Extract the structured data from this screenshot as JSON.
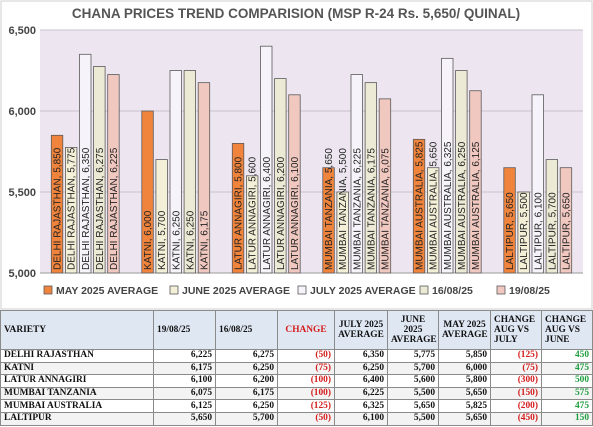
{
  "chart_data": {
    "type": "bar",
    "title": "CHANA PRICES TREND COMPARISION (MSP R-24 Rs. 5,650/ QUINAL)",
    "ylim": [
      5000,
      6500
    ],
    "yticks": [
      "5,000",
      "5,500",
      "6,000",
      "6,500"
    ],
    "ytick_values": [
      5000,
      5500,
      6000,
      6500
    ],
    "grid": true,
    "legend_position": "bottom",
    "categories": [
      "DELHI RAJASTHAN",
      "KATNI",
      "LATUR ANNAGIRI",
      "MUMBAI TANZANIA",
      "MUMBAI AUSTRALIA",
      "LALTIPUR"
    ],
    "series": [
      {
        "name": "MAY 2025 AVERAGE",
        "color": "#f0843c",
        "values": [
          5850,
          6000,
          5800,
          5650,
          5825,
          5650
        ],
        "labels": [
          "DELHI RAJASTHAN, 5,850",
          "KATNI, 6,000",
          "LATUR ANNAGIRI, 5,800",
          "MUMBAI TANZANIA, 5,650",
          "MUMBAI AUSTRALIA, 5,825",
          "LALTIPUR, 5,650"
        ]
      },
      {
        "name": "JUNE 2025 AVERAGE",
        "color": "#f4f0d8",
        "values": [
          5775,
          5700,
          5600,
          5500,
          5650,
          5500
        ],
        "labels": [
          "DELHI RAJASTHAN, 5,775",
          "KATNI, 5,700",
          "LATUR ANNAGIRI, 5,600",
          "MUMBAI TANZANIA, 5,500",
          "MUMBAI AUSTRALIA, 5,650",
          "LALTIPUR, 5,500"
        ]
      },
      {
        "name": "JULY 2025 AVERAGE",
        "color": "#f6f4fa",
        "values": [
          6350,
          6250,
          6400,
          6225,
          6325,
          6100
        ],
        "labels": [
          "DELHI RAJASTHAN, 6,350",
          "KATNI, 6,250",
          "LATUR ANNAGIRI, 6,400",
          "MUMBAI TANZANIA, 6,225",
          "MUMBAI AUSTRALIA, 6,325",
          "LALTIPUR, 6,100"
        ]
      },
      {
        "name": "16/08/25",
        "color": "#ecead4",
        "values": [
          6275,
          6250,
          6200,
          6175,
          6250,
          5700
        ],
        "labels": [
          "DELHI RAJASTHAN, 6,275",
          "KATNI, 6,250",
          "LATUR ANNAGIRI, 6,200",
          "MUMBAI TANZANIA, 6,175",
          "MUMBAI AUSTRALIA, 6,250",
          "LALTIPUR, 5,700"
        ]
      },
      {
        "name": "19/08/25",
        "color": "#f0c8c0",
        "values": [
          6225,
          6175,
          6100,
          6075,
          6125,
          5650
        ],
        "labels": [
          "DELHI RAJASTHAN, 6,225",
          "KATNI, 6,175",
          "LATUR ANNAGIRI, 6,100",
          "MUMBAI TANZANIA, 6,075",
          "MUMBAI AUSTRALIA, 6,125",
          "LALTIPUR, 5,650"
        ]
      }
    ]
  },
  "table": {
    "headers": [
      "VARIETY",
      "19/08/25",
      "16/08/25",
      "CHANGE",
      "JULY 2025 AVERAGE",
      "JUNE 2025 AVERAGE",
      "MAY 2025 AVERAGE",
      "CHANGE AUG VS JULY",
      "CHANGE AUG VS JUNE"
    ],
    "rows": [
      {
        "variety": "DELHI RAJASTHAN",
        "d19": "6,225",
        "d16": "6,275",
        "change": "(50)",
        "july": "6,350",
        "june": "5,775",
        "may": "5,850",
        "vs_july": "(125)",
        "vs_june": "450"
      },
      {
        "variety": "KATNI",
        "d19": "6,175",
        "d16": "6,250",
        "change": "(75)",
        "july": "6,250",
        "june": "5,700",
        "may": "6,000",
        "vs_july": "(75)",
        "vs_june": "475"
      },
      {
        "variety": "LATUR ANNAGIRI",
        "d19": "6,100",
        "d16": "6,200",
        "change": "(100)",
        "july": "6,400",
        "june": "5,600",
        "may": "5,800",
        "vs_july": "(300)",
        "vs_june": "500"
      },
      {
        "variety": "MUMBAI TANZANIA",
        "d19": "6,075",
        "d16": "6,175",
        "change": "(100)",
        "july": "6,225",
        "june": "5,500",
        "may": "5,650",
        "vs_july": "(150)",
        "vs_june": "575"
      },
      {
        "variety": "MUMBAI AUSTRALIA",
        "d19": "6,125",
        "d16": "6,250",
        "change": "(125)",
        "july": "6,325",
        "june": "5,650",
        "may": "5,825",
        "vs_july": "(200)",
        "vs_june": "475"
      },
      {
        "variety": "LALTIPUR",
        "d19": "5,650",
        "d16": "5,700",
        "change": "(50)",
        "july": "6,100",
        "june": "5,500",
        "may": "5,650",
        "vs_july": "(450)",
        "vs_june": "150"
      }
    ]
  }
}
